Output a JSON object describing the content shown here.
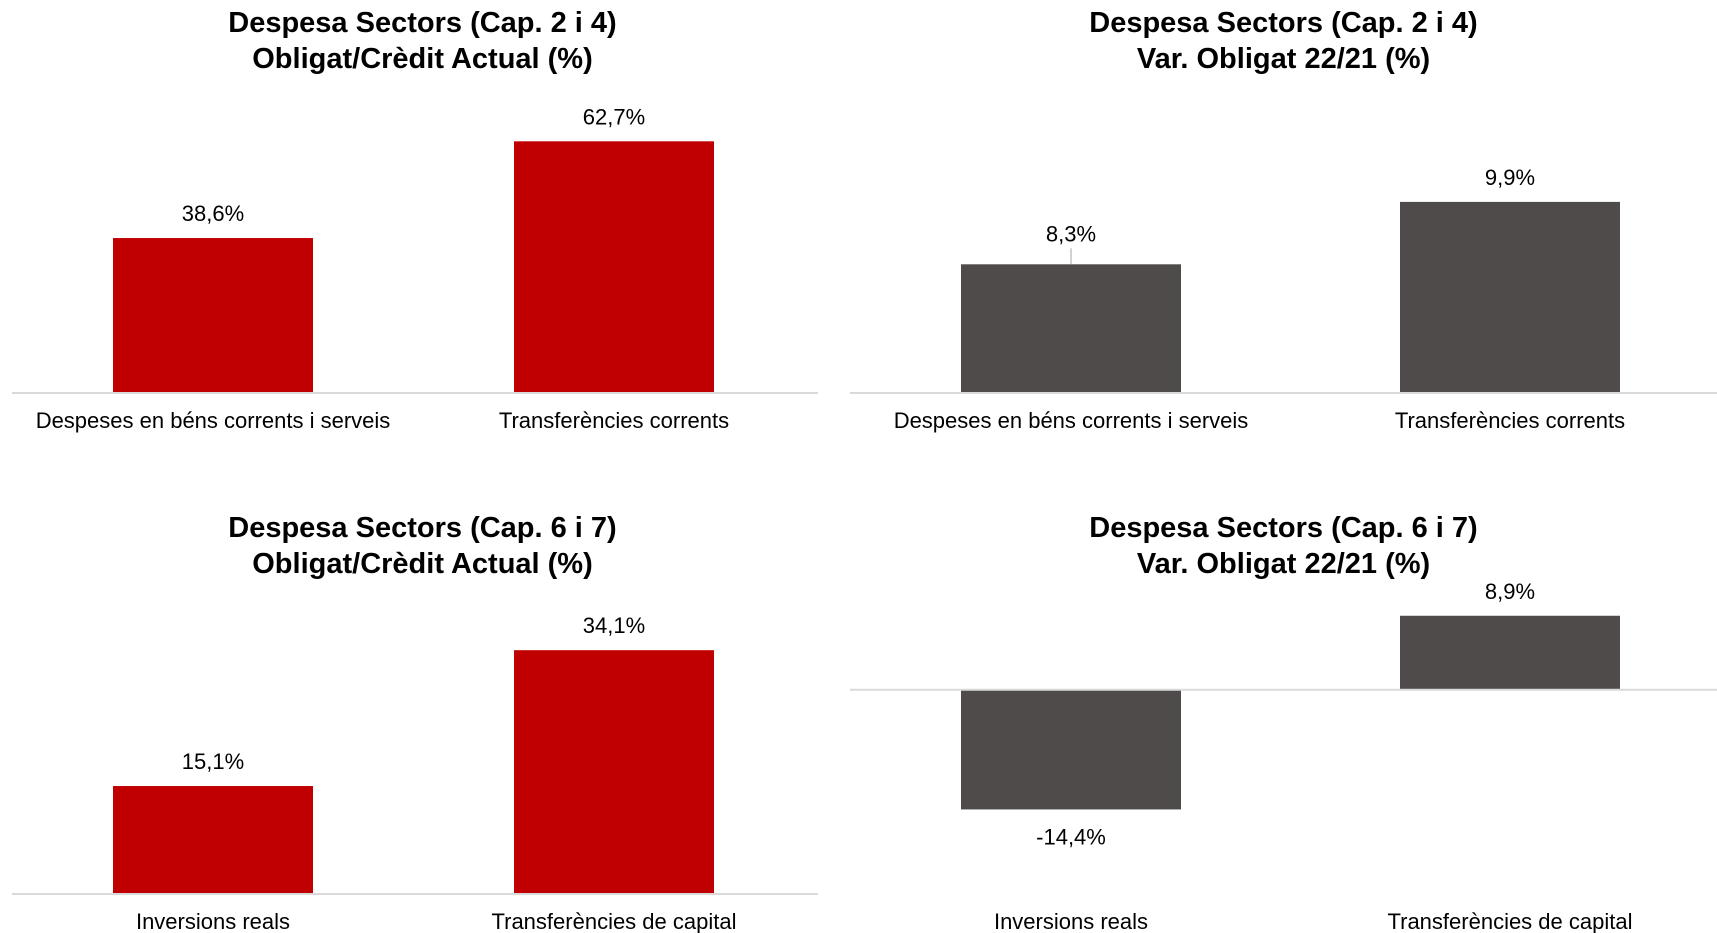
{
  "chart_data": [
    {
      "type": "bar",
      "title": [
        "Despesa Sectors (Cap. 2 i 4)",
        "Obligat/Crèdit Actual (%)"
      ],
      "categories": [
        "Despeses en béns corrents i serveis",
        "Transferències corrents"
      ],
      "values": [
        38.6,
        62.7
      ],
      "data_labels": [
        "38,6%",
        "62,7%"
      ],
      "ylim": [
        0,
        70
      ],
      "color": "#c00000",
      "grid": false,
      "legend": "none"
    },
    {
      "type": "bar",
      "title": [
        "Despesa Sectors (Cap. 2 i 4)",
        "Var. Obligat  22/21 (%)"
      ],
      "categories": [
        "Despeses en béns corrents i serveis",
        "Transferències corrents"
      ],
      "values": [
        8.3,
        9.9
      ],
      "data_labels": [
        "8,3%",
        "9,9%"
      ],
      "ylim": [
        5,
        12
      ],
      "color": "#4f4b4b",
      "grid": false,
      "legend": "none"
    },
    {
      "type": "bar",
      "title": [
        "Despesa Sectors (Cap. 6 i 7)",
        "Obligat/Crèdit Actual (%)"
      ],
      "categories": [
        "Inversions reals",
        "Transferències de capital"
      ],
      "values": [
        15.1,
        34.1
      ],
      "data_labels": [
        "15,1%",
        "34,1%"
      ],
      "ylim": [
        0,
        40
      ],
      "color": "#c00000",
      "grid": false,
      "legend": "none"
    },
    {
      "type": "bar",
      "title": [
        "Despesa  Sectors (Cap. 6 i 7)",
        "Var. Obligat 22/21 (%)"
      ],
      "categories": [
        "Inversions reals",
        "Transferències de capital"
      ],
      "values": [
        -14.4,
        8.9
      ],
      "data_labels": [
        "-14,4%",
        "8,9%"
      ],
      "ylim": [
        -20,
        12
      ],
      "color": "#4f4b4b",
      "grid": false,
      "legend": "none"
    }
  ]
}
